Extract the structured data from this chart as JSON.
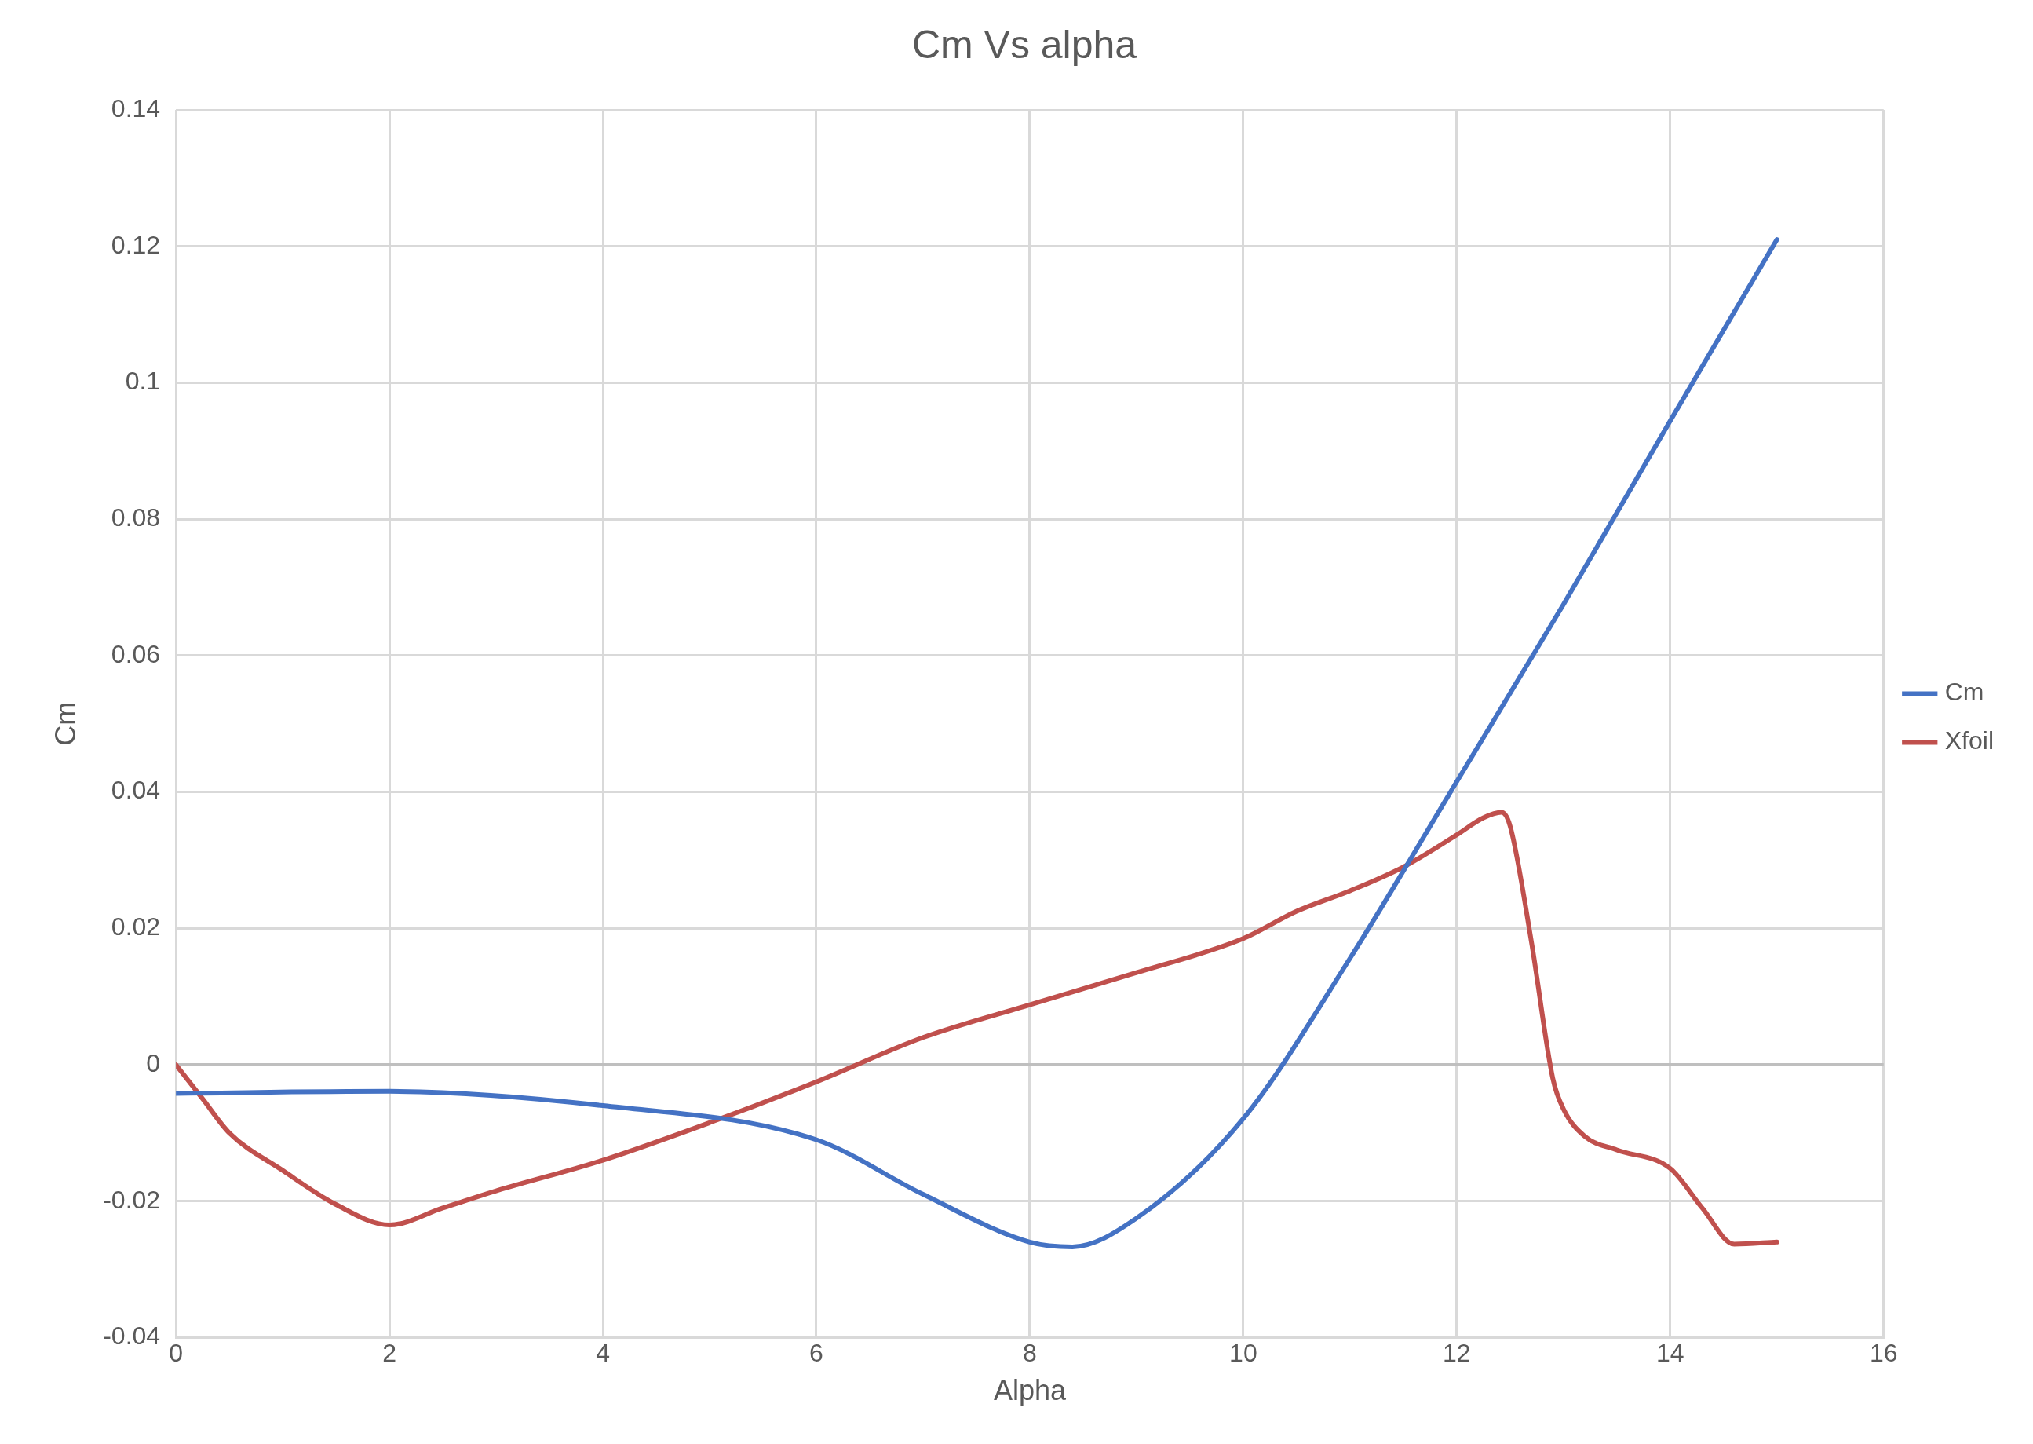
{
  "chart_data": {
    "type": "line",
    "title": "Cm Vs alpha",
    "xlabel": "Alpha",
    "ylabel": "Cm",
    "xlim": [
      0,
      16
    ],
    "xticks": [
      0,
      2,
      4,
      6,
      8,
      10,
      12,
      14,
      16
    ],
    "ylim": [
      -0.04,
      0.14
    ],
    "yticks": [
      -0.04,
      -0.02,
      0,
      0.02,
      0.04,
      0.06,
      0.08,
      0.1,
      0.12,
      0.14
    ],
    "grid": true,
    "legend": "right",
    "marker": "none",
    "line_style": "solid",
    "series": [
      {
        "name": "Cm",
        "color": "#4472c4",
        "x": [
          0,
          2,
          4,
          6,
          7,
          8,
          8.4,
          9,
          10,
          11,
          12,
          13,
          14,
          15
        ],
        "values": [
          -0.0042,
          -0.0039,
          -0.006,
          -0.011,
          -0.019,
          -0.026,
          -0.0267,
          -0.0225,
          -0.0079,
          0.0156,
          0.0415,
          0.0675,
          0.0944,
          0.121
        ]
      },
      {
        "name": "Xfoil",
        "color": "#c0504d",
        "x": [
          0,
          0.25,
          0.5,
          1,
          1.5,
          2,
          2.5,
          3,
          4,
          5,
          6,
          7,
          8,
          9,
          10,
          10.5,
          11,
          11.5,
          12,
          12.25,
          12.42,
          12.5,
          12.7,
          12.9,
          13,
          13.2,
          13.5,
          14,
          14.3,
          14.6,
          15
        ],
        "values": [
          0,
          -0.005,
          -0.01,
          -0.0155,
          -0.0205,
          -0.0235,
          -0.021,
          -0.0185,
          -0.014,
          -0.0085,
          -0.0025,
          0.004,
          0.0088,
          0.0135,
          0.0185,
          0.0225,
          0.0255,
          0.029,
          0.0337,
          0.0362,
          0.037,
          0.035,
          0.018,
          -0.002,
          -0.0065,
          -0.0105,
          -0.0125,
          -0.0152,
          -0.021,
          -0.0263,
          -0.026
        ]
      }
    ]
  }
}
